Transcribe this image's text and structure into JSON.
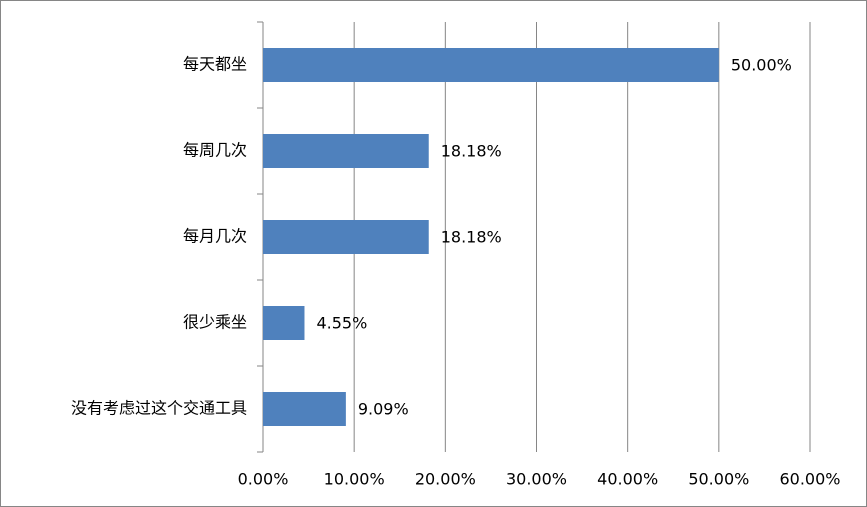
{
  "chart_data": {
    "type": "bar",
    "orientation": "horizontal",
    "categories": [
      "每天都坐",
      "每周几次",
      "每月几次",
      "很少乘坐",
      "没有考虑过这个交通工具"
    ],
    "values": [
      50,
      18.18,
      18.18,
      4.55,
      9.09
    ],
    "value_labels": [
      "50.00%",
      "18.18%",
      "18.18%",
      "4.55%",
      "9.09%"
    ],
    "color": "#4f81bd",
    "xlim": [
      0,
      60
    ],
    "xticks": [
      {
        "value": 0,
        "label": "0.00%"
      },
      {
        "value": 10,
        "label": "10.00%"
      },
      {
        "value": 20,
        "label": "20.00%"
      },
      {
        "value": 30,
        "label": "30.00%"
      },
      {
        "value": 40,
        "label": "40.00%"
      },
      {
        "value": 50,
        "label": "50.00%"
      },
      {
        "value": 60,
        "label": "60.00%"
      }
    ],
    "grid": true
  }
}
